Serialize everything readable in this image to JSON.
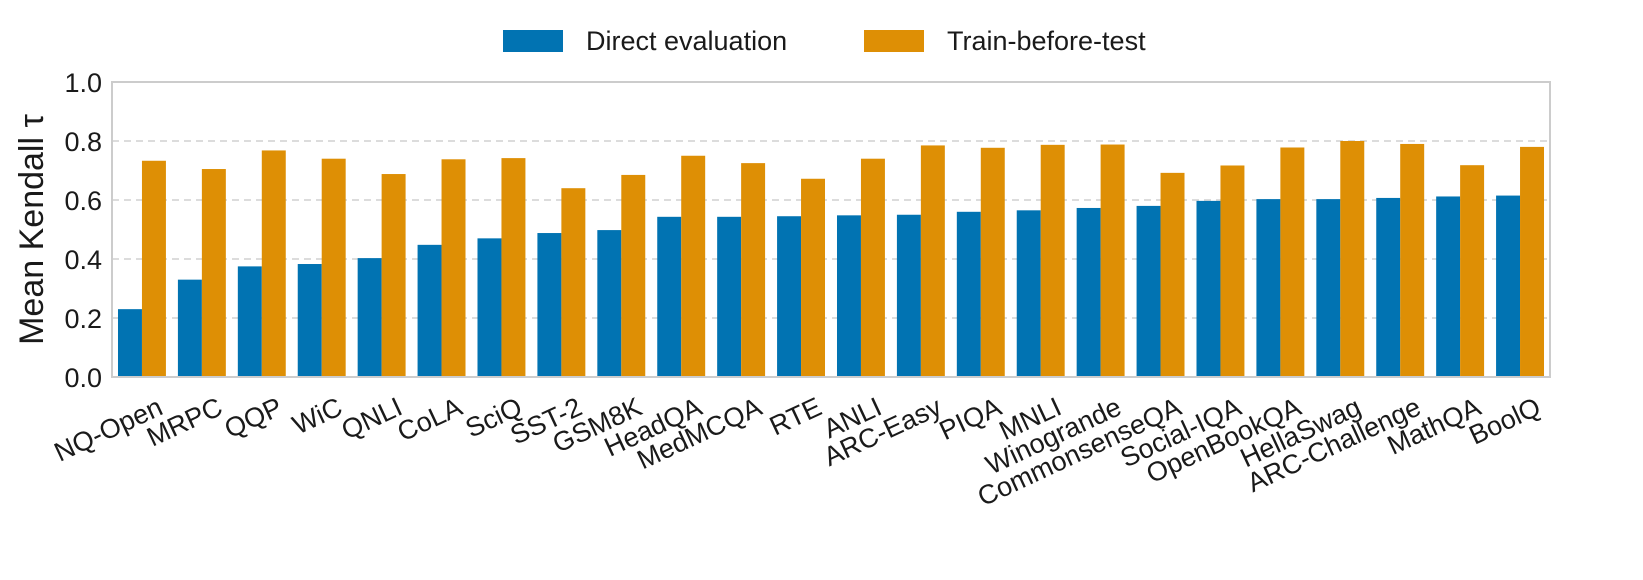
{
  "chart_data": {
    "type": "bar",
    "title": "",
    "xlabel": "",
    "ylabel": "Mean Kendall τ",
    "ylim": [
      0,
      1.0
    ],
    "yticks": [
      "0.0",
      "0.2",
      "0.4",
      "0.6",
      "0.8",
      "1.0"
    ],
    "grid": "y",
    "legend_position": "top-center",
    "categories": [
      "NQ-Open",
      "MRPC",
      "QQP",
      "WiC",
      "QNLI",
      "CoLA",
      "SciQ",
      "SST-2",
      "GSM8K",
      "HeadQA",
      "MedMCQA",
      "RTE",
      "ANLI",
      "ARC-Easy",
      "PIQA",
      "MNLI",
      "Winogrande",
      "CommonsenseQA",
      "Social-IQA",
      "OpenBookQA",
      "HellaSwag",
      "ARC-Challenge",
      "MathQA",
      "BoolQ"
    ],
    "series": [
      {
        "name": "Direct evaluation",
        "color": "#0173b2",
        "values": [
          0.23,
          0.33,
          0.375,
          0.383,
          0.403,
          0.448,
          0.47,
          0.488,
          0.498,
          0.543,
          0.543,
          0.545,
          0.548,
          0.55,
          0.56,
          0.565,
          0.573,
          0.58,
          0.597,
          0.603,
          0.603,
          0.607,
          0.612,
          0.615
        ]
      },
      {
        "name": "Train-before-test",
        "color": "#de8f05",
        "values": [
          0.733,
          0.705,
          0.768,
          0.74,
          0.688,
          0.738,
          0.742,
          0.64,
          0.685,
          0.75,
          0.725,
          0.672,
          0.74,
          0.785,
          0.777,
          0.787,
          0.788,
          0.692,
          0.717,
          0.778,
          0.8,
          0.79,
          0.718,
          0.78
        ]
      }
    ]
  }
}
